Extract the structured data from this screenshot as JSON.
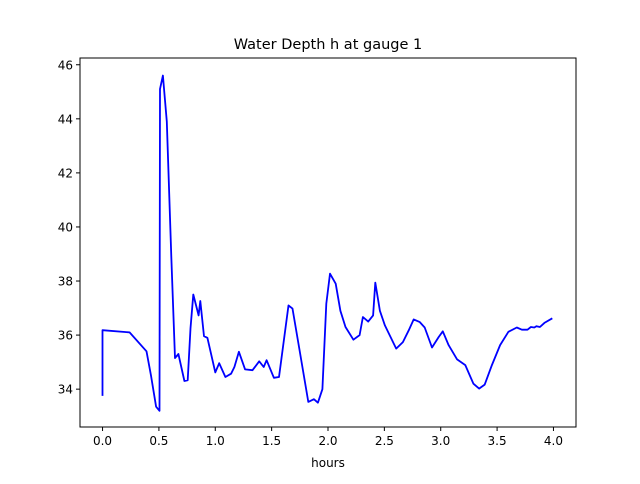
{
  "chart_data": {
    "type": "line",
    "title": "Water Depth h at gauge 1",
    "xlabel": "hours",
    "ylabel": "",
    "xlim": [
      -0.2,
      4.2
    ],
    "ylim": [
      32.6,
      46.25
    ],
    "xticks": [
      "0.0",
      "0.5",
      "1.0",
      "1.5",
      "2.0",
      "2.5",
      "3.0",
      "3.5",
      "4.0"
    ],
    "yticks": [
      "34",
      "36",
      "38",
      "40",
      "42",
      "44",
      "46"
    ],
    "grid": false,
    "series": [
      {
        "name": "h",
        "color": "#0000ff",
        "x": [
          0,
          0,
          0.24,
          0.39,
          0.43,
          0.475,
          0.505,
          0.51,
          0.535,
          0.57,
          0.61,
          0.643,
          0.673,
          0.726,
          0.755,
          0.78,
          0.805,
          0.852,
          0.867,
          0.9,
          0.93,
          1.0,
          1.035,
          1.09,
          1.14,
          1.17,
          1.21,
          1.265,
          1.33,
          1.39,
          1.43,
          1.455,
          1.52,
          1.565,
          1.65,
          1.685,
          1.745,
          1.825,
          1.875,
          1.91,
          1.95,
          1.985,
          2.018,
          2.068,
          2.11,
          2.155,
          2.225,
          2.28,
          2.31,
          2.357,
          2.4,
          2.42,
          2.46,
          2.505,
          2.605,
          2.664,
          2.717,
          2.76,
          2.814,
          2.858,
          2.923,
          2.982,
          3.018,
          3.07,
          3.145,
          3.218,
          3.29,
          3.34,
          3.39,
          3.454,
          3.527,
          3.6,
          3.675,
          3.72,
          3.77,
          3.8,
          3.83,
          3.85,
          3.88,
          3.92,
          3.99
        ],
        "y": [
          33.75,
          36.18,
          36.1,
          35.4,
          34.5,
          33.35,
          33.2,
          45.1,
          45.6,
          43.9,
          38.9,
          35.15,
          35.3,
          34.3,
          34.33,
          36.25,
          37.5,
          36.73,
          37.26,
          35.96,
          35.9,
          34.62,
          34.96,
          34.45,
          34.57,
          34.82,
          35.38,
          34.73,
          34.7,
          35.03,
          34.82,
          35.07,
          34.42,
          34.45,
          37.1,
          36.98,
          35.5,
          33.53,
          33.63,
          33.5,
          34.0,
          37.16,
          38.27,
          37.9,
          36.9,
          36.3,
          35.83,
          36.0,
          36.67,
          36.5,
          36.73,
          37.94,
          36.9,
          36.36,
          35.5,
          35.74,
          36.18,
          36.58,
          36.48,
          36.28,
          35.54,
          35.93,
          36.14,
          35.63,
          35.1,
          34.89,
          34.2,
          34.02,
          34.17,
          34.89,
          35.63,
          36.12,
          36.28,
          36.2,
          36.2,
          36.3,
          36.28,
          36.33,
          36.3,
          36.45,
          36.62
        ]
      }
    ]
  }
}
